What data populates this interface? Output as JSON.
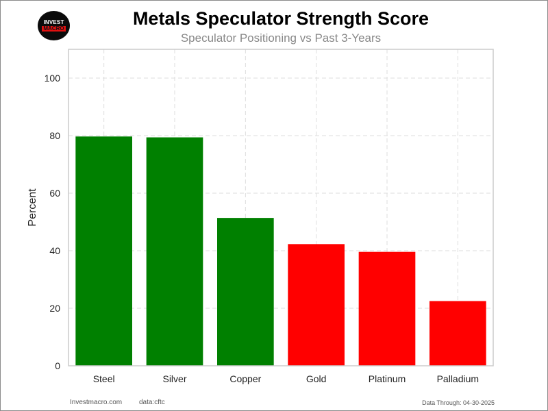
{
  "logo": {
    "line1": "INVEST",
    "line2": "MACRO"
  },
  "footer": {
    "source": "Investmacro.com",
    "data": "data:cftc",
    "through": "Data Through: 04-30-2025"
  },
  "colors": {
    "positive": "#008000",
    "negative": "#ff0000",
    "grid": "#dddddd",
    "axis": "#cccccc"
  },
  "chart_data": {
    "type": "bar",
    "title": "Metals Speculator Strength Score",
    "subtitle": "Speculator Positioning vs Past 3-Years",
    "xlabel": "",
    "ylabel": "Percent",
    "categories": [
      "Steel",
      "Silver",
      "Copper",
      "Gold",
      "Platinum",
      "Palladium"
    ],
    "values": [
      79.7,
      79.4,
      51.4,
      42.3,
      39.6,
      22.5
    ],
    "bar_colors": [
      "#008000",
      "#008000",
      "#008000",
      "#ff0000",
      "#ff0000",
      "#ff0000"
    ],
    "ylim": [
      0,
      110
    ],
    "yticks": [
      0,
      20,
      40,
      60,
      80,
      100
    ],
    "grid": true,
    "grid_style": "dashed",
    "legend": "none"
  }
}
